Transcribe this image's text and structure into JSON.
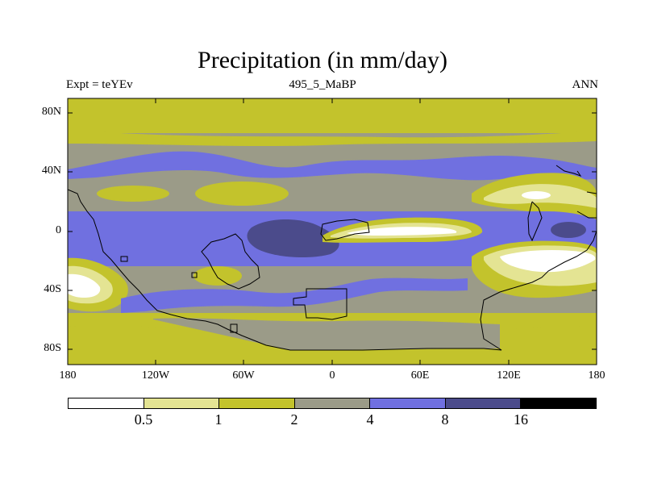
{
  "title": "Precipitation (in mm/day)",
  "subtitle_left": "Expt = teYEv",
  "subtitle_center": "495_5_MaBP",
  "subtitle_right": "ANN",
  "lat_labels": [
    "80N",
    "40N",
    "0",
    "40S",
    "80S"
  ],
  "lon_labels": [
    "180",
    "120W",
    "60W",
    "0",
    "60E",
    "120E",
    "180"
  ],
  "colorbar": {
    "colors": [
      "#ffffff",
      "#e4e493",
      "#c3c32c",
      "#9b9b88",
      "#7070e0",
      "#4b4b8b",
      "#000000"
    ],
    "labels": [
      "0.5",
      "1",
      "2",
      "4",
      "8",
      "16"
    ]
  },
  "map_colors": {
    "lt_yellow": "#e4e493",
    "yellow": "#c3c32c",
    "gray": "#9b9b88",
    "blue": "#7070e0",
    "navy": "#4b4b8b",
    "white": "#ffffff",
    "coast": "#000000"
  }
}
